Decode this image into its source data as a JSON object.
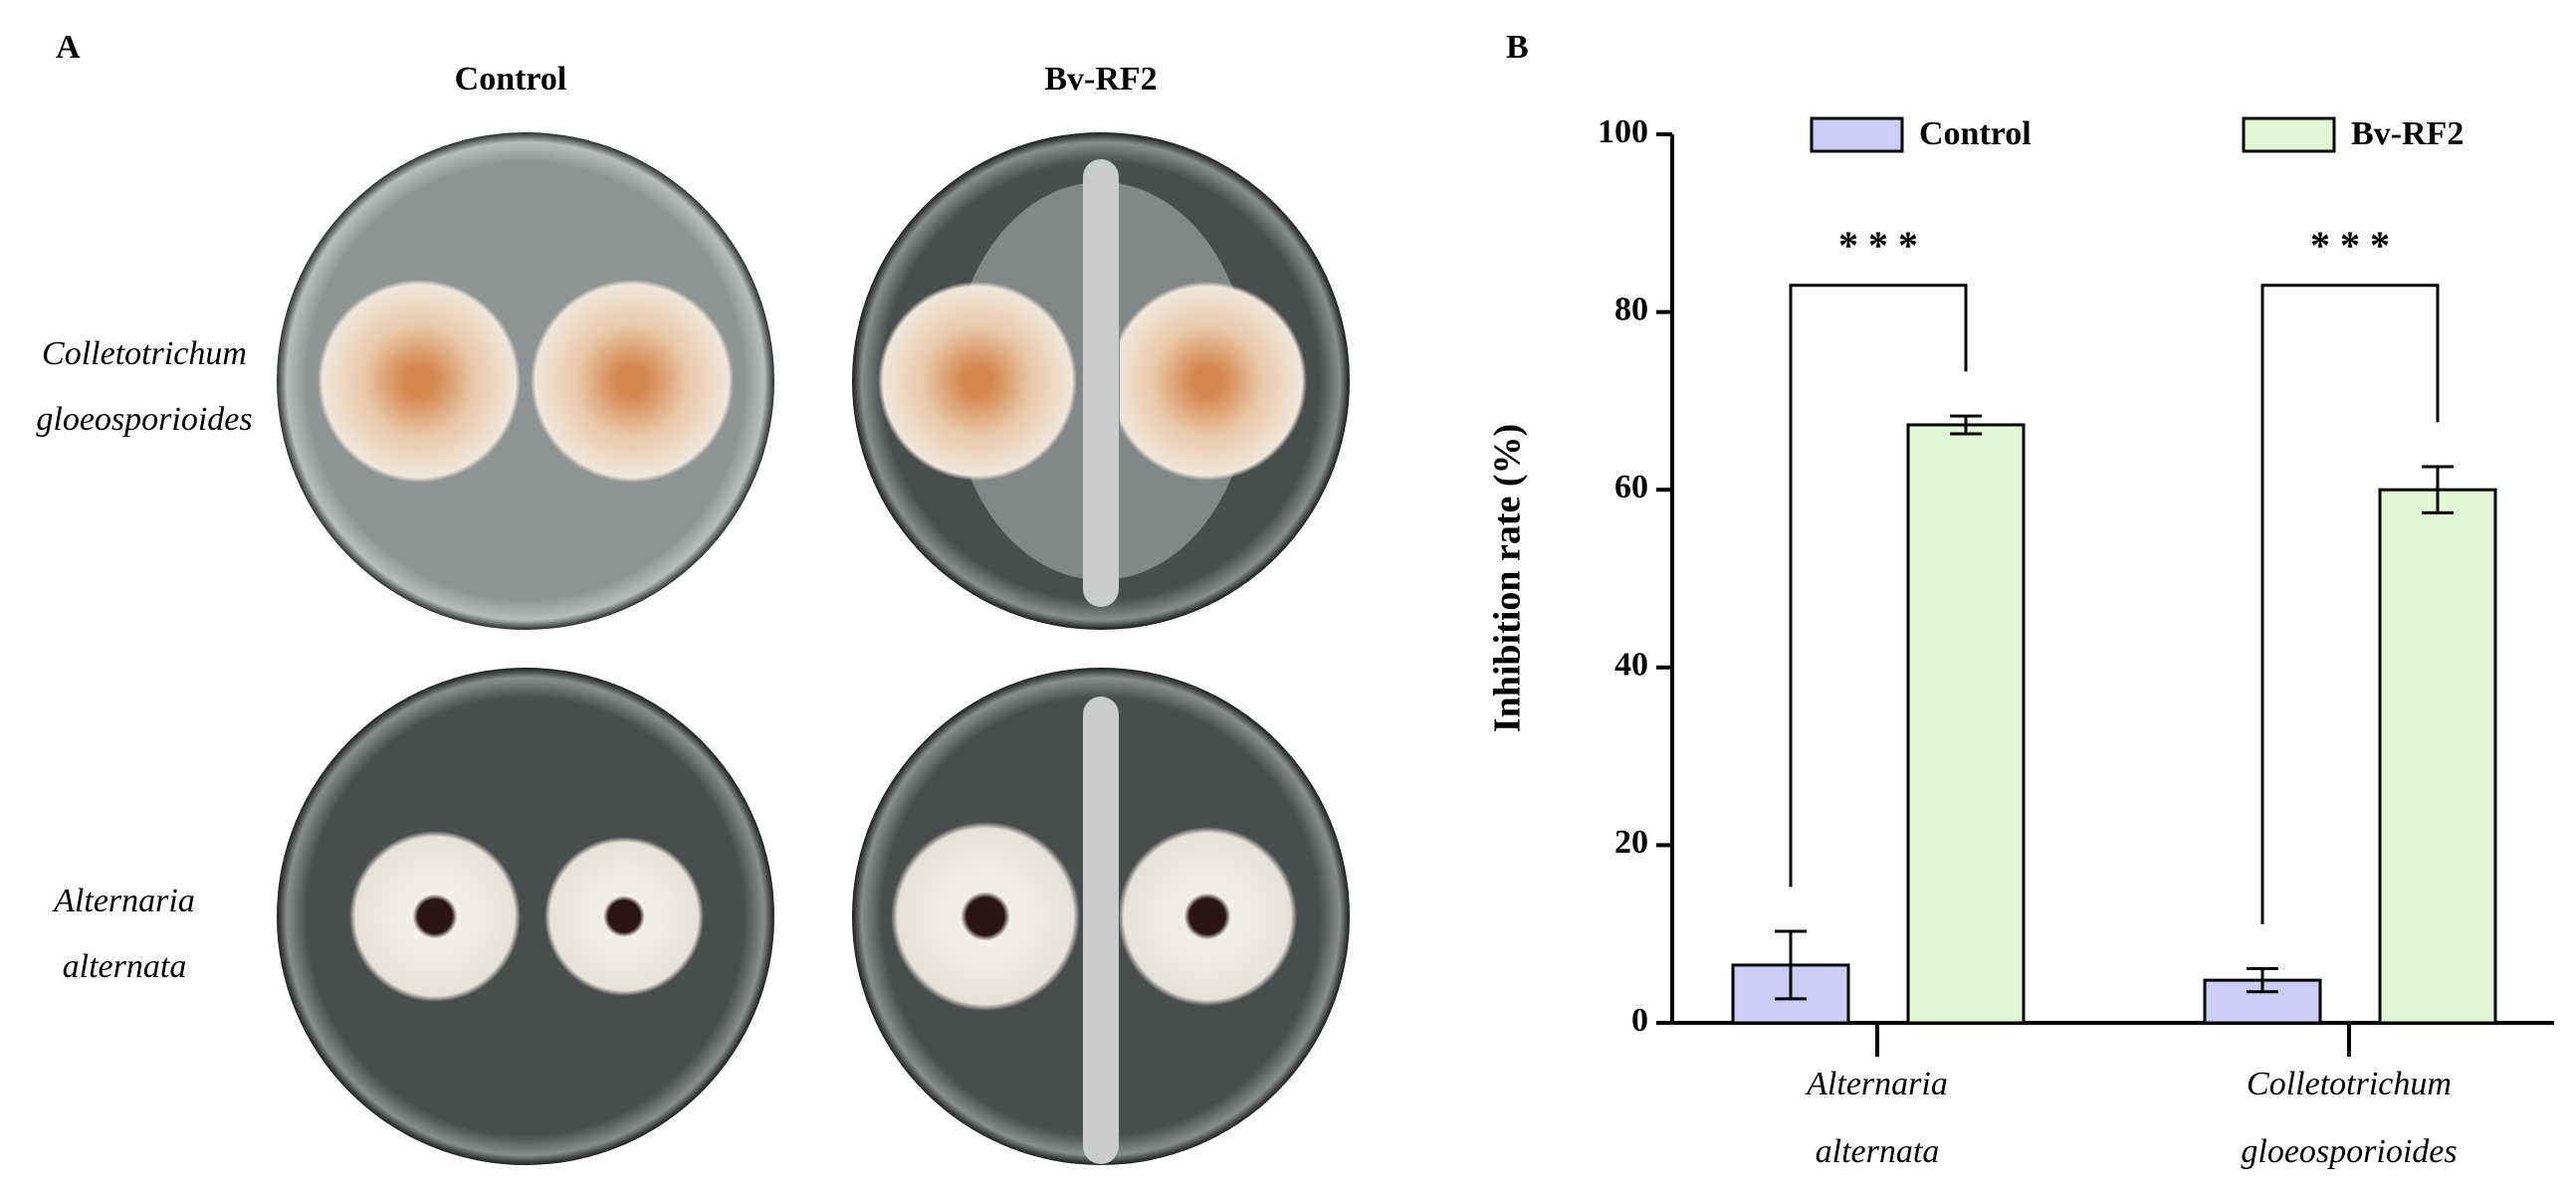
{
  "panel_a": {
    "label": "A",
    "columns": [
      "Control",
      "Bv-RF2"
    ],
    "rows": [
      [
        "Colletotrichum",
        "gloeosporioides"
      ],
      [
        "Alternaria",
        "alternata"
      ]
    ]
  },
  "chart_data": {
    "type": "bar",
    "panel_label": "B",
    "y_label": "Inhibition rate (%)",
    "categories": [
      [
        "Alternaria",
        "alternata"
      ],
      [
        "Colletotrichum",
        "gloeosporioides"
      ]
    ],
    "series": [
      {
        "name": "Control",
        "color": "#ccccf7",
        "values": [
          6.5,
          4.8
        ],
        "errors": [
          3.8,
          1.3
        ]
      },
      {
        "name": "Bv-RF2",
        "color": "#e2f7d6",
        "values": [
          67.3,
          60.0
        ],
        "errors": [
          1.0,
          2.6
        ]
      }
    ],
    "annotations": [
      "* * *",
      "* * *"
    ],
    "ylim": [
      0,
      100
    ],
    "yticks": [
      0,
      20,
      40,
      60,
      80,
      100
    ]
  }
}
